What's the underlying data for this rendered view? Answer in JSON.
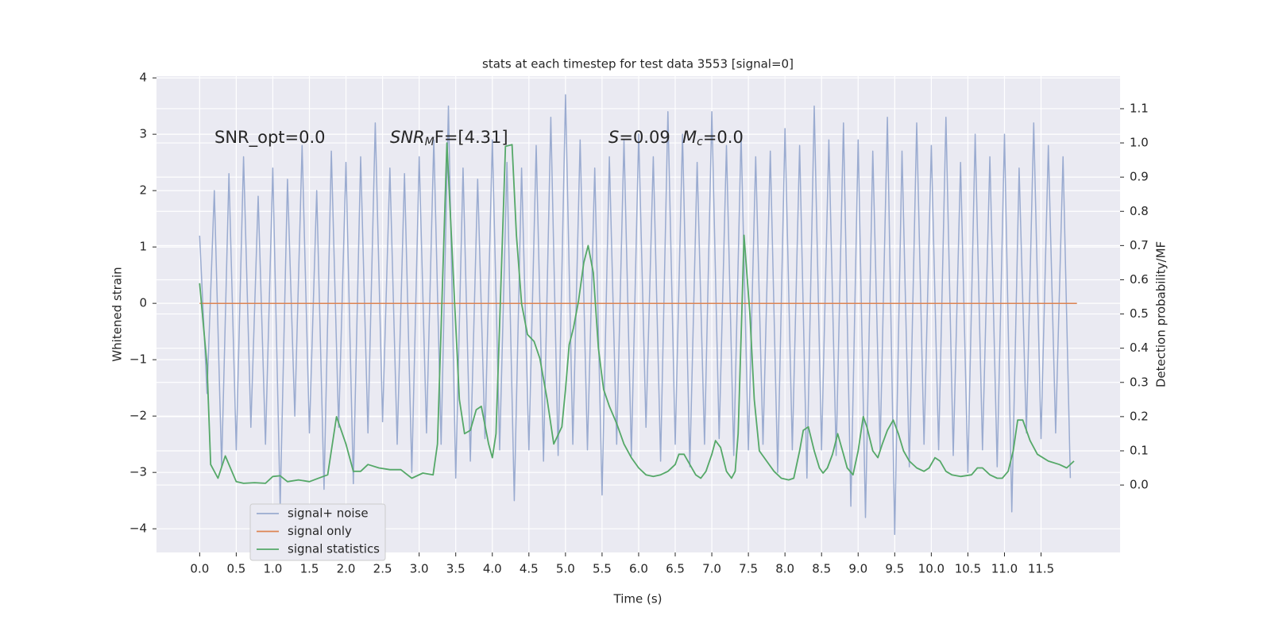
{
  "chart_data": {
    "type": "line",
    "title": "stats at each timestep for test data 3553 [signal=0]",
    "xlabel": "Time (s)",
    "ylabel": "Whitened strain",
    "y2label": "Detection probability/MF",
    "annotations": [
      [
        "SNR_opt=0.0"
      ],
      [
        "SNR",
        "M",
        "F=[4.31]"
      ],
      [
        "S",
        "=0.09"
      ],
      [
        "M",
        "c",
        "=0.0"
      ]
    ],
    "xlim": [
      -0.59,
      12.58
    ],
    "ylim": [
      -4.42,
      4.03
    ],
    "y2lim": [
      -0.197,
      1.195
    ],
    "xticks": [
      {
        "value": 0,
        "label": "0.0"
      },
      0.5,
      {
        "value": 1,
        "label": "1.0"
      },
      1.5,
      {
        "value": 2,
        "label": "2.0"
      },
      2.5,
      {
        "value": 3,
        "label": "3.0"
      },
      3.5,
      {
        "value": 4,
        "label": "4.0"
      },
      4.5,
      {
        "value": 5,
        "label": "5.0"
      },
      5.5,
      {
        "value": 6,
        "label": "6.0"
      },
      6.5,
      {
        "value": 7,
        "label": "7.0"
      },
      7.5,
      {
        "value": 8,
        "label": "8.0"
      },
      8.5,
      {
        "value": 9,
        "label": "9.0"
      },
      9.5,
      {
        "value": 10,
        "label": "10.0"
      },
      10.5,
      {
        "value": 11,
        "label": "11.0"
      },
      11.5
    ],
    "yticks": [
      {
        "value": -4,
        "label": "−4"
      },
      {
        "value": -3,
        "label": "−3"
      },
      {
        "value": -2,
        "label": "−2"
      },
      {
        "value": -1,
        "label": "−1"
      },
      0,
      1,
      2,
      3,
      4
    ],
    "y2ticks": [
      {
        "value": 0,
        "label": "0.0"
      },
      0.1,
      0.2,
      0.3,
      0.4,
      0.5,
      0.6,
      0.7,
      0.8,
      0.9,
      {
        "value": 1,
        "label": "1.0"
      },
      1.1
    ],
    "grid": true,
    "legend": "lower left",
    "series": [
      {
        "name": "signal+ noise",
        "color": "#9aabd0",
        "x": [
          0,
          0.1,
          0.2,
          0.3,
          0.4,
          0.5,
          0.6,
          0.7,
          0.8,
          0.9,
          1,
          1.1,
          1.2,
          1.3,
          1.4,
          1.5,
          1.6,
          1.7,
          1.8,
          1.9,
          2,
          2.1,
          2.2,
          2.3,
          2.4,
          2.5,
          2.6,
          2.7,
          2.8,
          2.9,
          3,
          3.1,
          3.2,
          3.3,
          3.4,
          3.5,
          3.6,
          3.7,
          3.8,
          3.9,
          4,
          4.1,
          4.2,
          4.3,
          4.4,
          4.5,
          4.6,
          4.7,
          4.8,
          4.9,
          5,
          5.1,
          5.2,
          5.3,
          5.4,
          5.5,
          5.6,
          5.7,
          5.8,
          5.9,
          6,
          6.1,
          6.2,
          6.3,
          6.4,
          6.5,
          6.6,
          6.7,
          6.8,
          6.9,
          7,
          7.1,
          7.2,
          7.3,
          7.4,
          7.5,
          7.6,
          7.7,
          7.8,
          7.9,
          8,
          8.1,
          8.2,
          8.3,
          8.4,
          8.5,
          8.6,
          8.7,
          8.8,
          8.9,
          9,
          9.1,
          9.2,
          9.3,
          9.4,
          9.5,
          9.6,
          9.7,
          9.8,
          9.9,
          10,
          10.1,
          10.2,
          10.3,
          10.4,
          10.5,
          10.6,
          10.7,
          10.8,
          10.9,
          11,
          11.1,
          11.2,
          11.3,
          11.4,
          11.5,
          11.6,
          11.7,
          11.8,
          11.9
        ],
        "values": [
          1.2,
          -1.6,
          2.0,
          -2.9,
          2.3,
          -2.6,
          2.6,
          -2.2,
          1.9,
          -2.5,
          2.4,
          -3.6,
          2.2,
          -2.0,
          2.8,
          -2.3,
          2.0,
          -3.3,
          2.7,
          -2.2,
          2.5,
          -3.2,
          2.6,
          -2.3,
          3.2,
          -2.1,
          2.4,
          -2.5,
          2.3,
          -3.0,
          2.6,
          -2.3,
          2.9,
          -2.5,
          3.5,
          -3.1,
          2.4,
          -2.8,
          2.2,
          -2.4,
          2.9,
          -2.6,
          2.5,
          -3.5,
          2.4,
          -2.6,
          2.8,
          -2.8,
          3.3,
          -2.7,
          3.7,
          -2.5,
          2.9,
          -2.6,
          2.4,
          -3.4,
          2.6,
          -2.5,
          2.9,
          -2.7,
          3.0,
          -2.2,
          2.6,
          -2.8,
          3.4,
          -2.5,
          3.0,
          -2.9,
          2.5,
          -2.5,
          3.4,
          -2.4,
          2.8,
          -2.7,
          3.0,
          -2.6,
          2.6,
          -2.5,
          2.7,
          -3.0,
          3.1,
          -2.6,
          2.8,
          -3.1,
          3.5,
          -2.6,
          2.9,
          -2.7,
          3.2,
          -3.6,
          2.9,
          -3.8,
          2.7,
          -2.6,
          3.3,
          -4.1,
          2.7,
          -2.9,
          3.2,
          -2.5,
          2.8,
          -2.6,
          3.3,
          -2.7,
          2.5,
          -3.0,
          3.0,
          -2.6,
          2.6,
          -2.9,
          3.0,
          -3.7,
          2.4,
          -2.3,
          3.2,
          -2.4,
          2.8,
          -2.3,
          2.6,
          -3.1
        ]
      },
      {
        "name": "signal only",
        "color": "#dd8452",
        "x": [
          0,
          11.99
        ],
        "values": [
          0,
          0
        ]
      },
      {
        "name": "signal statistics",
        "color": "#55a868",
        "axis": "y2",
        "x": [
          0,
          0.1,
          0.15,
          0.25,
          0.35,
          0.5,
          0.6,
          0.75,
          0.9,
          1.0,
          1.1,
          1.2,
          1.35,
          1.5,
          1.6,
          1.75,
          1.87,
          2.0,
          2.1,
          2.2,
          2.3,
          2.45,
          2.6,
          2.75,
          2.9,
          3.05,
          3.19,
          3.25,
          3.38,
          3.47,
          3.55,
          3.62,
          3.7,
          3.78,
          3.85,
          3.95,
          4.0,
          4.05,
          4.12,
          4.18,
          4.27,
          4.33,
          4.4,
          4.48,
          4.57,
          4.65,
          4.75,
          4.84,
          4.95,
          5.0,
          5.05,
          5.11,
          5.18,
          5.25,
          5.31,
          5.38,
          5.45,
          5.52,
          5.6,
          5.7,
          5.8,
          5.9,
          6.0,
          6.1,
          6.2,
          6.3,
          6.4,
          6.5,
          6.55,
          6.62,
          6.7,
          6.78,
          6.85,
          6.92,
          7.0,
          7.05,
          7.12,
          7.2,
          7.27,
          7.32,
          7.36,
          7.41,
          7.44,
          7.52,
          7.58,
          7.65,
          7.75,
          7.85,
          7.95,
          8.05,
          8.12,
          8.2,
          8.25,
          8.32,
          8.4,
          8.47,
          8.52,
          8.58,
          8.65,
          8.72,
          8.8,
          8.85,
          8.93,
          9.0,
          9.07,
          9.12,
          9.2,
          9.27,
          9.33,
          9.4,
          9.48,
          9.55,
          9.62,
          9.7,
          9.8,
          9.9,
          9.97,
          10.05,
          10.12,
          10.2,
          10.28,
          10.4,
          10.55,
          10.63,
          10.7,
          10.8,
          10.9,
          10.97,
          11.05,
          11.12,
          11.18,
          11.25,
          11.35,
          11.45,
          11.6,
          11.75,
          11.85,
          11.95
        ],
        "values": [
          0.59,
          0.35,
          0.06,
          0.02,
          0.085,
          0.01,
          0.005,
          0.007,
          0.005,
          0.025,
          0.027,
          0.01,
          0.015,
          0.01,
          0.018,
          0.03,
          0.2,
          0.12,
          0.04,
          0.04,
          0.06,
          0.05,
          0.045,
          0.045,
          0.02,
          0.035,
          0.03,
          0.12,
          1.0,
          0.6,
          0.25,
          0.15,
          0.16,
          0.22,
          0.23,
          0.12,
          0.08,
          0.15,
          0.6,
          0.99,
          0.995,
          0.73,
          0.53,
          0.44,
          0.42,
          0.37,
          0.25,
          0.12,
          0.17,
          0.28,
          0.41,
          0.46,
          0.54,
          0.65,
          0.7,
          0.62,
          0.4,
          0.28,
          0.23,
          0.18,
          0.12,
          0.08,
          0.05,
          0.03,
          0.025,
          0.03,
          0.04,
          0.06,
          0.09,
          0.09,
          0.06,
          0.03,
          0.02,
          0.04,
          0.09,
          0.13,
          0.11,
          0.04,
          0.02,
          0.04,
          0.15,
          0.5,
          0.73,
          0.5,
          0.25,
          0.1,
          0.07,
          0.04,
          0.02,
          0.015,
          0.02,
          0.1,
          0.16,
          0.17,
          0.1,
          0.05,
          0.035,
          0.05,
          0.09,
          0.15,
          0.09,
          0.05,
          0.03,
          0.1,
          0.2,
          0.17,
          0.1,
          0.08,
          0.12,
          0.16,
          0.19,
          0.15,
          0.1,
          0.07,
          0.05,
          0.04,
          0.05,
          0.08,
          0.07,
          0.04,
          0.03,
          0.025,
          0.03,
          0.05,
          0.05,
          0.03,
          0.02,
          0.02,
          0.04,
          0.1,
          0.19,
          0.19,
          0.13,
          0.09,
          0.07,
          0.06,
          0.05,
          0.07
        ]
      }
    ]
  }
}
